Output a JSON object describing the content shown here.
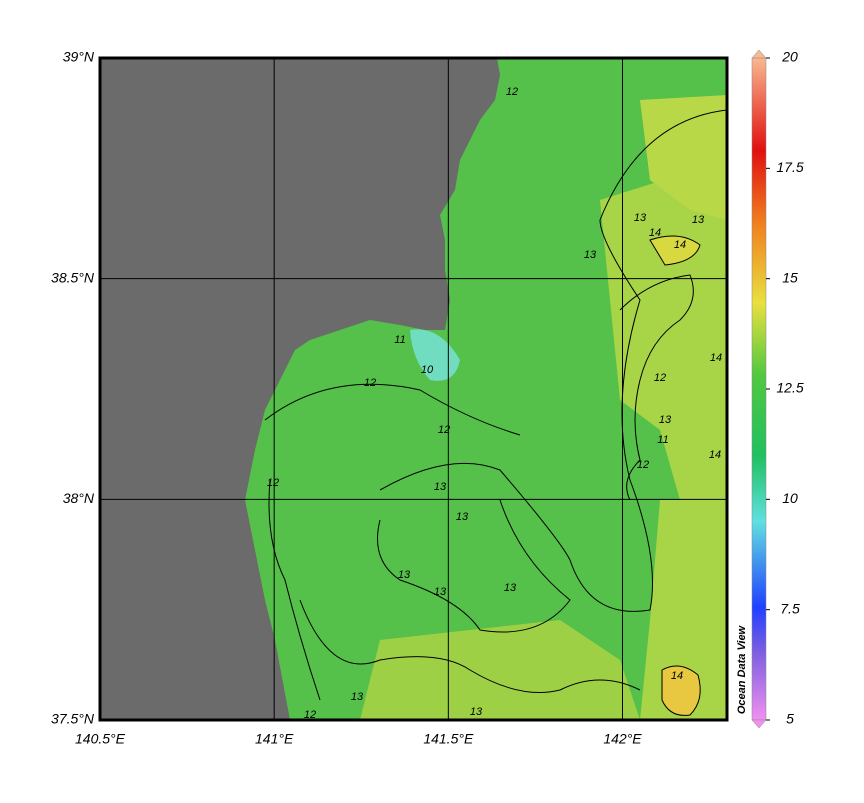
{
  "map": {
    "xlim": [
      140.5,
      142.3
    ],
    "ylim": [
      37.5,
      39
    ],
    "xticks": [
      {
        "value": 140.5,
        "label": "140.5°E"
      },
      {
        "value": 141,
        "label": "141°E"
      },
      {
        "value": 141.5,
        "label": "141.5°E"
      },
      {
        "value": 142,
        "label": "142°E"
      }
    ],
    "yticks": [
      {
        "value": 39,
        "label": "39°N"
      },
      {
        "value": 38.5,
        "label": "38.5°N"
      },
      {
        "value": 38,
        "label": "38°N"
      },
      {
        "value": 37.5,
        "label": "37.5°N"
      }
    ],
    "contour_labels": [
      12,
      12,
      12,
      12,
      12,
      13,
      13,
      13,
      13,
      13,
      13,
      13,
      13,
      13,
      14,
      14,
      14,
      14,
      14,
      10,
      11,
      11,
      12,
      12,
      13,
      13
    ],
    "colorbar": {
      "lim": [
        5,
        20
      ],
      "ticks": [
        5,
        7.5,
        10,
        12.5,
        15,
        17.5,
        20
      ],
      "credit": "Ocean Data View"
    }
  }
}
